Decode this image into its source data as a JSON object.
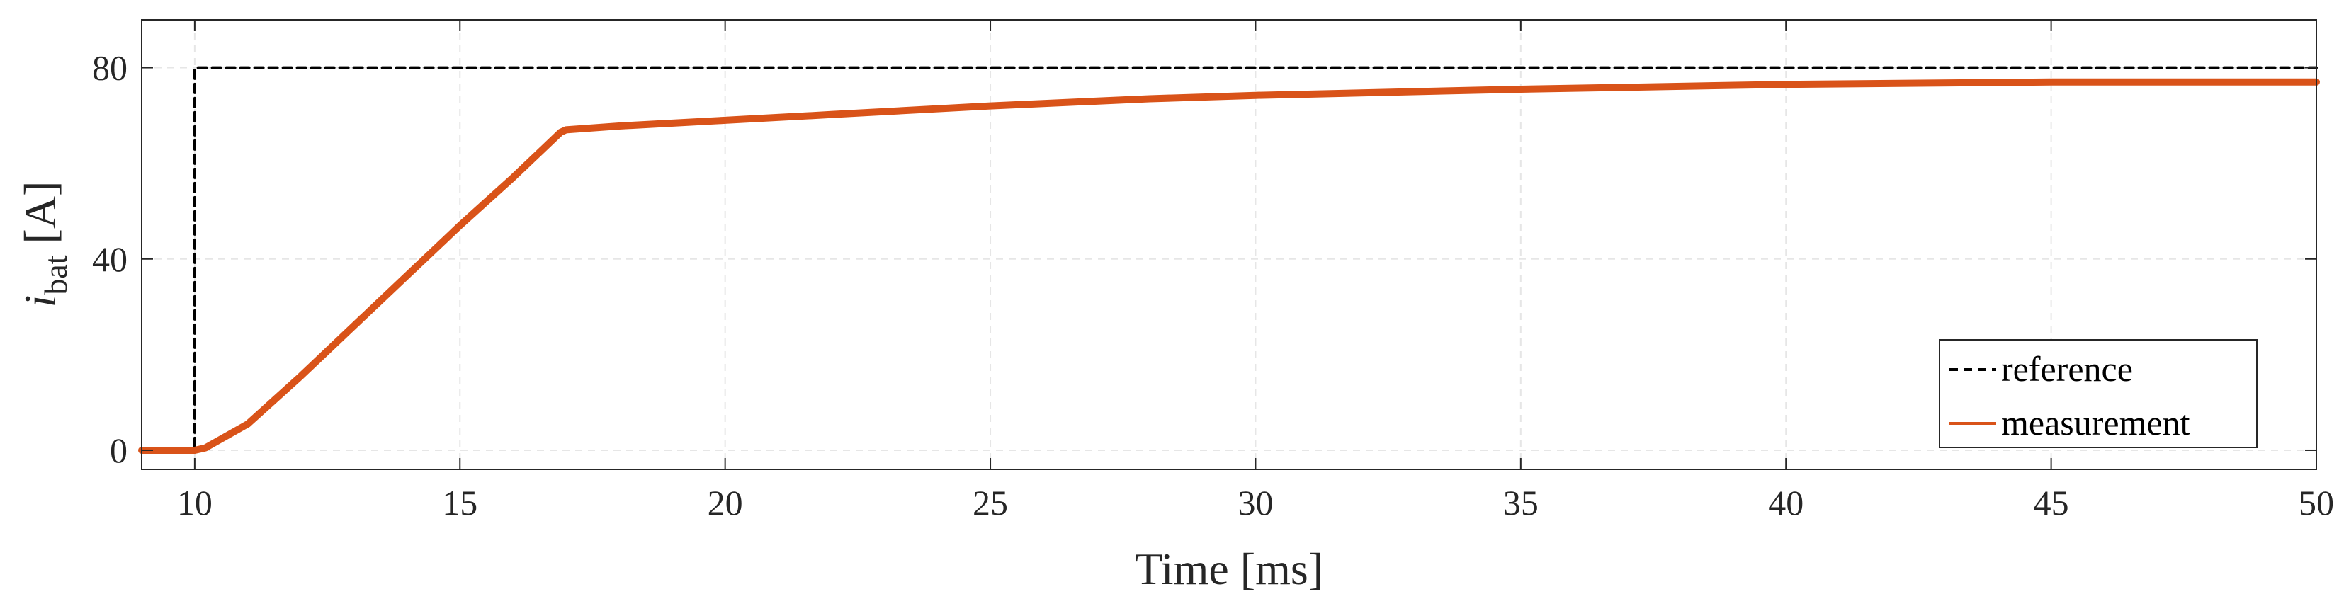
{
  "chart_data": {
    "type": "line",
    "xlabel": "Time [ms]",
    "ylabel": {
      "base": "i",
      "subscript": "bat",
      "unit": "[A]"
    },
    "xlim": [
      9,
      50
    ],
    "ylim": [
      -4,
      90
    ],
    "xticks": [
      10,
      15,
      20,
      25,
      30,
      35,
      40,
      45,
      50
    ],
    "yticks": [
      0,
      40,
      80
    ],
    "grid": true,
    "legend_position": "bottom-right",
    "series": [
      {
        "name": "reference",
        "style": "dashed",
        "color": "#000000",
        "x": [
          9,
          10,
          10,
          50
        ],
        "y": [
          0,
          0,
          80,
          80
        ]
      },
      {
        "name": "measurement",
        "style": "solid",
        "color": "#D95319",
        "x": [
          9,
          10,
          10.2,
          11,
          12,
          13,
          14,
          15,
          16,
          16.9,
          17,
          18,
          20,
          22,
          25,
          28,
          30,
          35,
          40,
          45,
          50
        ],
        "y": [
          0,
          0,
          0.5,
          5.5,
          15.5,
          26,
          36.5,
          47,
          57,
          66.5,
          67,
          67.8,
          69,
          70.2,
          72,
          73.5,
          74.2,
          75.5,
          76.5,
          77,
          77
        ]
      }
    ]
  }
}
